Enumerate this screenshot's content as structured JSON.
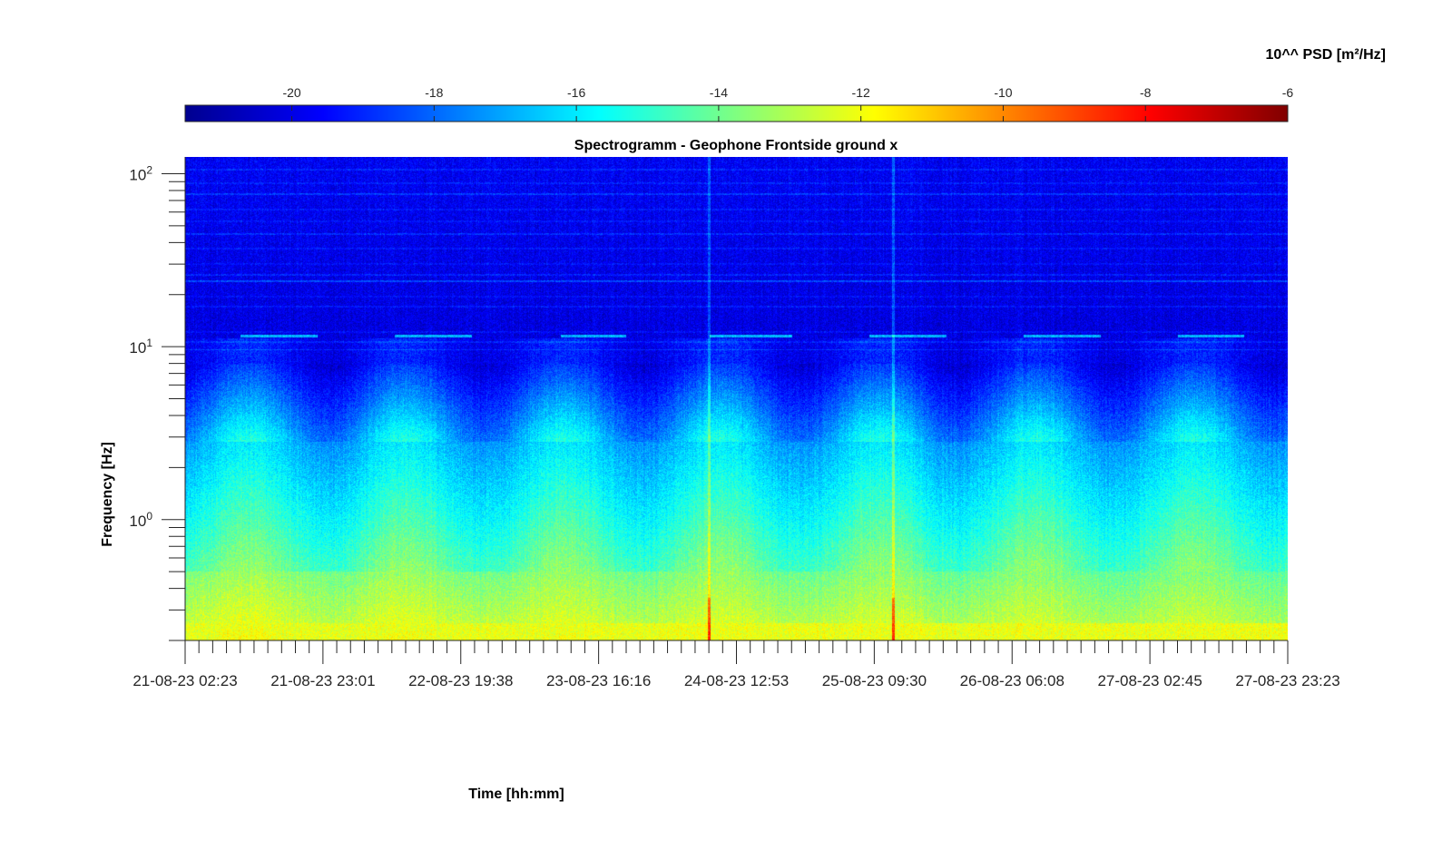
{
  "chart_data": {
    "type": "heatmap",
    "title": "Spectrogramm - Geophone Frontside ground x",
    "xlabel": "Time [hh:mm]",
    "ylabel": "Frequency [Hz]",
    "yscale": "log",
    "ylim": [
      0.2,
      125
    ],
    "yticks": [
      {
        "base": "10",
        "exp": "0",
        "value": 1
      },
      {
        "base": "10",
        "exp": "1",
        "value": 10
      },
      {
        "base": "10",
        "exp": "2",
        "value": 100
      }
    ],
    "xticks": [
      "21-08-23 02:23",
      "21-08-23 23:01",
      "22-08-23 19:38",
      "23-08-23 16:16",
      "24-08-23 12:53",
      "25-08-23 09:30",
      "26-08-23 06:08",
      "27-08-23 02:45",
      "27-08-23 23:23"
    ],
    "colorbar": {
      "label": "10^^ PSD [m²/Hz]",
      "colormap": "jet",
      "clim": [
        -21.5,
        -6
      ],
      "ticks": [
        "-20",
        "-18",
        "-16",
        "-14",
        "-12",
        "-10",
        "-8",
        "-6"
      ],
      "tick_values": [
        -20,
        -18,
        -16,
        -14,
        -12,
        -10,
        -8,
        -6
      ]
    },
    "features": {
      "high_freq_level": -20,
      "low_freq_level": -12,
      "narrowband_line_hz": 11.5,
      "transients": [
        {
          "x_fraction": 0.475,
          "peak_level": -8.5
        },
        {
          "x_fraction": 0.642,
          "peak_level": -8.5
        }
      ]
    }
  }
}
